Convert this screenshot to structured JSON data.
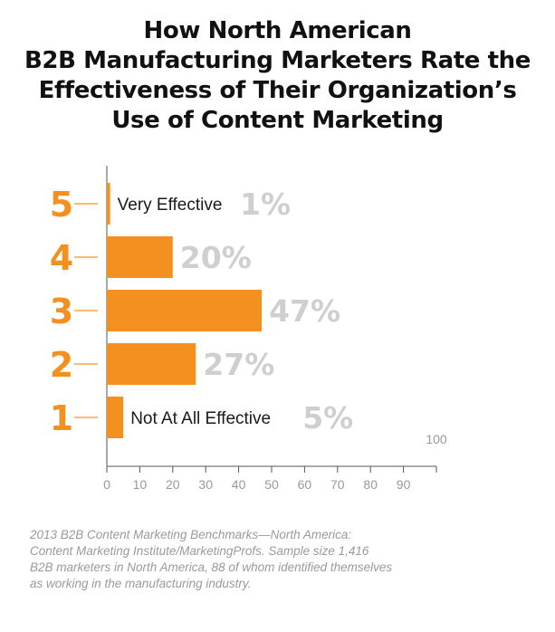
{
  "title_lines": [
    "How North American",
    "B2B Manufacturing Marketers Rate the",
    "Effectiveness of Their Organization’s",
    "Use of Content Marketing"
  ],
  "chart_data": {
    "type": "bar",
    "orientation": "horizontal",
    "categories": [
      "5",
      "4",
      "3",
      "2",
      "1"
    ],
    "category_labels": [
      "Very Effective",
      "",
      "",
      "",
      "Not At All Effective"
    ],
    "values": [
      1,
      20,
      47,
      27,
      5
    ],
    "value_labels": [
      "1%",
      "20%",
      "47%",
      "27%",
      "5%"
    ],
    "xlim": [
      0,
      100
    ],
    "x_ticks": [
      "0",
      "10",
      "20",
      "30",
      "40",
      "50",
      "60",
      "70",
      "80",
      "90"
    ],
    "x_max_label": "100",
    "grid": false,
    "legend": "none"
  },
  "colors": {
    "bar": "#f39020",
    "category_number": "#f39020",
    "value_label": "#cfcfcf",
    "axis": "#555555",
    "tick_label": "#999999"
  },
  "source_lines": [
    "2013 B2B Content Marketing Benchmarks—North America:",
    "Content Marketing Institute/MarketingProfs. Sample size 1,416",
    "B2B marketers in North America, 88 of whom identified themselves",
    "as working in the manufacturing industry."
  ]
}
